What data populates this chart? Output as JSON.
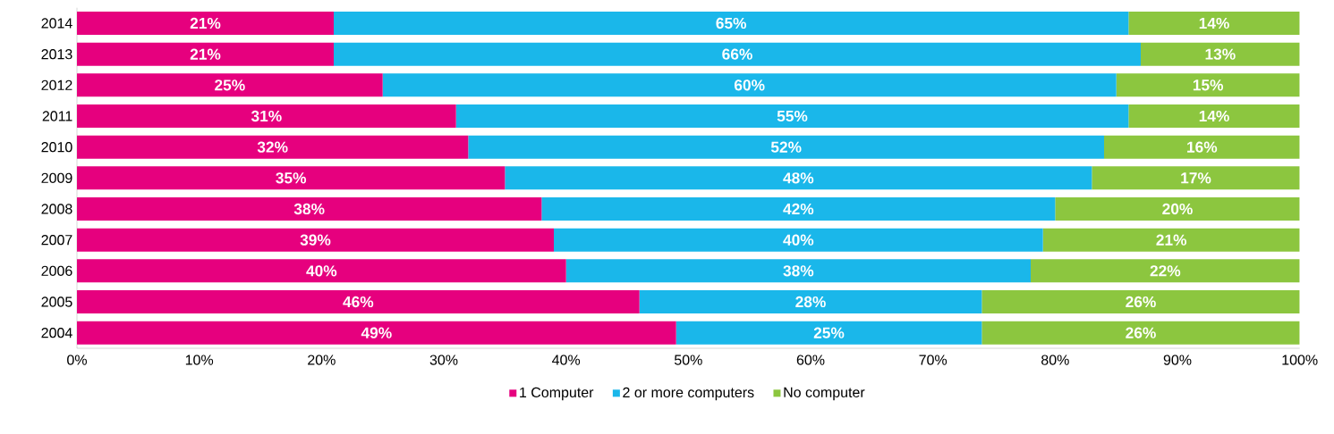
{
  "chart_data": {
    "type": "bar",
    "orientation": "horizontal",
    "stacked": true,
    "legend": "bottom",
    "categories": [
      "2014",
      "2013",
      "2012",
      "2011",
      "2010",
      "2009",
      "2008",
      "2007",
      "2006",
      "2005",
      "2004"
    ],
    "series": [
      {
        "name": "1 Computer",
        "color": "#e6007e",
        "values": [
          21,
          21,
          25,
          31,
          32,
          35,
          38,
          39,
          40,
          46,
          49
        ],
        "value_labels": [
          "21%",
          "21%",
          "25%",
          "31%",
          "32%",
          "35%",
          "38%",
          "39%",
          "40%",
          "46%",
          "49%"
        ]
      },
      {
        "name": "2 or more computers",
        "color": "#1ab7ea",
        "values": [
          65,
          66,
          60,
          55,
          52,
          48,
          42,
          40,
          38,
          28,
          25
        ],
        "value_labels": [
          "65%",
          "66%",
          "60%",
          "55%",
          "52%",
          "48%",
          "42%",
          "40%",
          "38%",
          "28%",
          "25%"
        ]
      },
      {
        "name": "No computer",
        "color": "#8cc63f",
        "values": [
          14,
          13,
          15,
          14,
          16,
          17,
          20,
          21,
          22,
          26,
          26
        ],
        "value_labels": [
          "14%",
          "13%",
          "15%",
          "14%",
          "16%",
          "17%",
          "20%",
          "21%",
          "22%",
          "26%",
          "26%"
        ]
      }
    ],
    "xlim": [
      0,
      100
    ],
    "xticks": [
      {
        "value": 0,
        "label": "0%"
      },
      {
        "value": 10,
        "label": "10%"
      },
      {
        "value": 20,
        "label": "20%"
      },
      {
        "value": 30,
        "label": "30%"
      },
      {
        "value": 40,
        "label": "40%"
      },
      {
        "value": 50,
        "label": "50%"
      },
      {
        "value": 60,
        "label": "60%"
      },
      {
        "value": 70,
        "label": "70%"
      },
      {
        "value": 80,
        "label": "80%"
      },
      {
        "value": 90,
        "label": "90%"
      },
      {
        "value": 100,
        "label": "100%"
      }
    ]
  }
}
